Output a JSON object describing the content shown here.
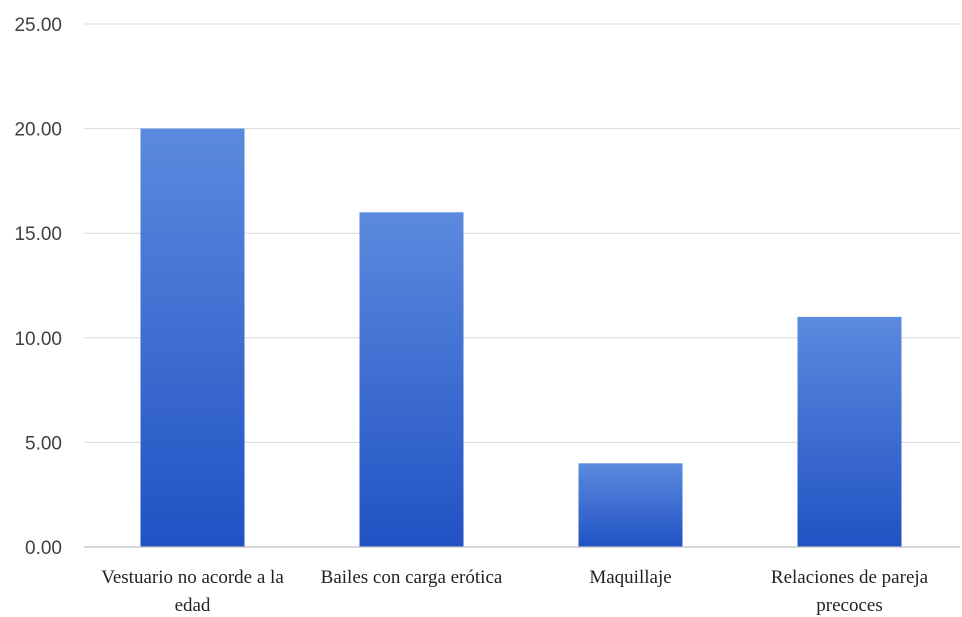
{
  "chart_data": {
    "type": "bar",
    "categories": [
      [
        "Vestuario no acorde a la",
        "edad"
      ],
      [
        "Bailes con carga erótica"
      ],
      [
        "Maquillaje"
      ],
      [
        "Relaciones de pareja",
        "precoces"
      ]
    ],
    "values": [
      20,
      16,
      4,
      11
    ],
    "yticks": [
      "0.00",
      "5.00",
      "10.00",
      "15.00",
      "20.00",
      "25.00"
    ],
    "ylim": [
      0,
      25
    ],
    "grid": true,
    "legend": "none",
    "colors": {
      "bar_top": "#5b8ade",
      "bar_bottom": "#2152c4",
      "grid": "#d9d9d9",
      "axis": "#bfbfbf"
    }
  }
}
